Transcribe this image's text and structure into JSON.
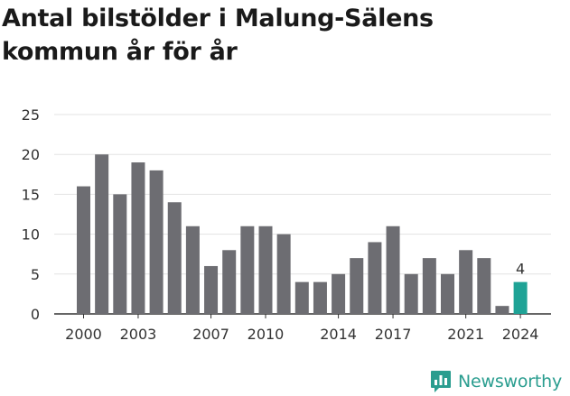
{
  "title": "Antal bilstölder i Malung-Sälens kommun år för år",
  "brand": {
    "name": "Newsworthy",
    "color": "#2a9d8f"
  },
  "colors": {
    "bar": "#6d6d72",
    "highlight": "#1fa396",
    "grid": "#e3e3e3",
    "axis": "#333333",
    "text": "#333333"
  },
  "chart_data": {
    "type": "bar",
    "title": "Antal bilstölder i Malung-Sälens kommun år för år",
    "xlabel": "",
    "ylabel": "",
    "categories": [
      "2000",
      "2001",
      "2002",
      "2003",
      "2004",
      "2005",
      "2006",
      "2007",
      "2008",
      "2009",
      "2010",
      "2011",
      "2012",
      "2013",
      "2014",
      "2015",
      "2016",
      "2017",
      "2018",
      "2019",
      "2020",
      "2021",
      "2022",
      "2023",
      "2024"
    ],
    "x_tick_labels": [
      "2000",
      "2003",
      "2007",
      "2010",
      "2014",
      "2017",
      "2021",
      "2024"
    ],
    "values": [
      16,
      20,
      15,
      19,
      18,
      14,
      11,
      6,
      8,
      11,
      11,
      10,
      4,
      4,
      5,
      7,
      9,
      11,
      5,
      7,
      5,
      8,
      7,
      1,
      4
    ],
    "ylim": [
      0,
      25
    ],
    "y_ticks": [
      0,
      5,
      10,
      15,
      20,
      25
    ],
    "grid": true,
    "highlight": {
      "category": "2024",
      "label": "4"
    }
  }
}
